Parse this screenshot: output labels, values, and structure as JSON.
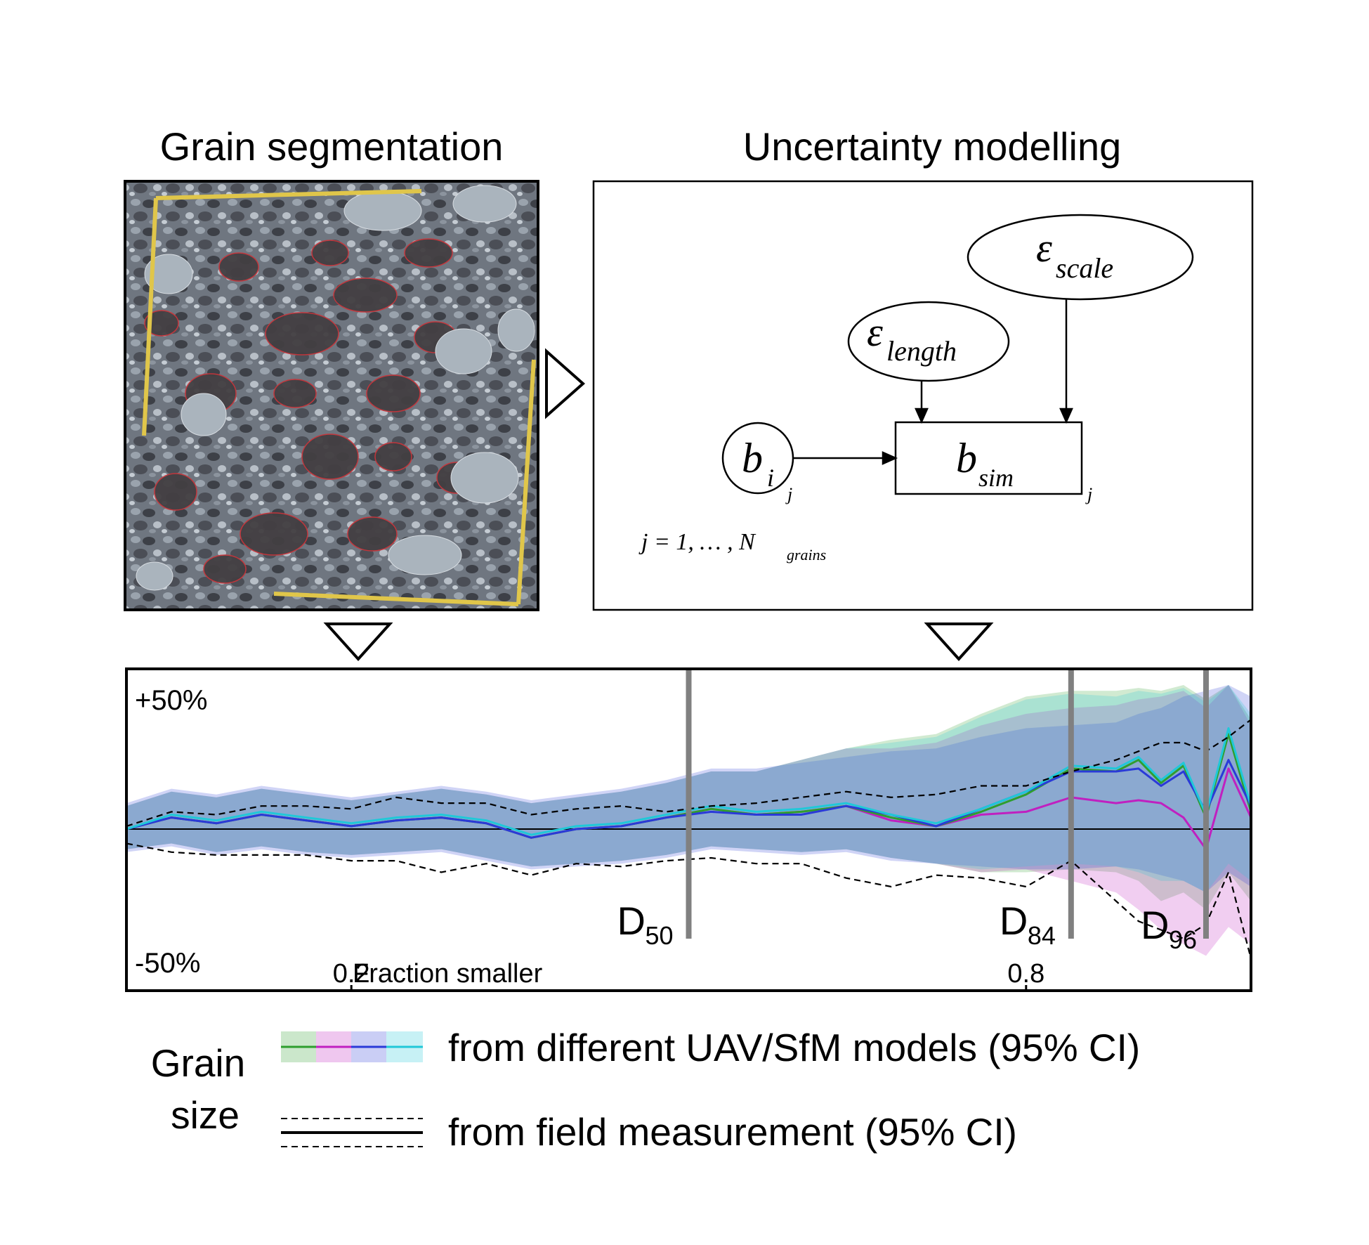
{
  "panels": {
    "left_title": "Grain segmentation",
    "right_title": "Uncertainty modelling"
  },
  "model": {
    "eps_length": {
      "symbol": "ε",
      "sub": "length"
    },
    "eps_scale": {
      "symbol": "ε",
      "sub": "scale"
    },
    "b_i": {
      "symbol": "b",
      "sub": "i",
      "plate": "j"
    },
    "b_sim": {
      "symbol": "b",
      "sub": "sim",
      "plate": "j"
    },
    "index_line": {
      "prefix": "j = 1, … , N",
      "sub": "grains"
    }
  },
  "chart": {
    "y_top_label": "+50%",
    "y_bottom_label": "-50%",
    "x_title": "Fraction smaller",
    "x_ticks": [
      "0.2",
      "0.8"
    ],
    "markers": [
      {
        "base": "D",
        "sub": "50"
      },
      {
        "base": "D",
        "sub": "84"
      },
      {
        "base": "D",
        "sub": "96"
      }
    ]
  },
  "legend": {
    "label_line1": "Grain",
    "label_line2": "size",
    "uav_text": "from different UAV/SfM models (95% CI)",
    "field_text": "from field measurement (95% CI)"
  },
  "colors": {
    "green": "#2e9e2e",
    "magenta": "#c020c0",
    "blue": "#2a3ad8",
    "cyan": "#20c8d8",
    "marker_grey": "#808080"
  },
  "chart_data": {
    "type": "line",
    "title": "",
    "xlabel": "Fraction smaller",
    "ylabel": "",
    "xlim": [
      0,
      1
    ],
    "ylim": [
      -50,
      50
    ],
    "x_ticks": [
      0.2,
      0.8
    ],
    "markers": [
      {
        "label": "D50",
        "x": 0.5
      },
      {
        "label": "D84",
        "x": 0.84
      },
      {
        "label": "D96",
        "x": 0.96
      }
    ],
    "x": [
      0.0,
      0.04,
      0.08,
      0.12,
      0.16,
      0.2,
      0.24,
      0.28,
      0.32,
      0.36,
      0.4,
      0.44,
      0.48,
      0.52,
      0.56,
      0.6,
      0.64,
      0.68,
      0.72,
      0.76,
      0.8,
      0.84,
      0.88,
      0.9,
      0.92,
      0.94,
      0.96,
      0.98,
      1.0
    ],
    "series": [
      {
        "name": "UAV model 1 (green)",
        "color": "#2e9e2e",
        "values": [
          0,
          4,
          2,
          5,
          3,
          1,
          3,
          4,
          2,
          -3,
          0,
          1,
          4,
          7,
          5,
          6,
          8,
          4,
          1,
          6,
          12,
          21,
          20,
          24,
          16,
          22,
          4,
          33,
          6
        ],
        "upper": [
          8,
          13,
          11,
          14,
          12,
          10,
          12,
          14,
          12,
          9,
          11,
          13,
          16,
          20,
          20,
          24,
          28,
          31,
          33,
          40,
          46,
          48,
          48,
          49,
          48,
          50,
          45,
          50,
          38
        ],
        "lower": [
          -7,
          -5,
          -8,
          -6,
          -8,
          -9,
          -8,
          -7,
          -10,
          -13,
          -12,
          -11,
          -9,
          -6,
          -7,
          -8,
          -7,
          -10,
          -12,
          -15,
          -15,
          -14,
          -15,
          -18,
          -25,
          -22,
          -28,
          -15,
          -25
        ]
      },
      {
        "name": "UAV model 2 (magenta)",
        "color": "#c020c0",
        "values": [
          0,
          4,
          2,
          5,
          3,
          1,
          3,
          4,
          2,
          -3,
          0,
          1,
          4,
          7,
          5,
          6,
          8,
          3,
          1,
          5,
          6,
          11,
          9,
          10,
          9,
          4,
          -7,
          21,
          4
        ],
        "upper": [
          8,
          13,
          11,
          14,
          12,
          10,
          12,
          14,
          12,
          9,
          11,
          13,
          16,
          20,
          20,
          24,
          28,
          28,
          30,
          36,
          40,
          42,
          43,
          45,
          46,
          48,
          42,
          50,
          36
        ],
        "lower": [
          -7,
          -5,
          -8,
          -6,
          -8,
          -9,
          -8,
          -7,
          -10,
          -13,
          -12,
          -11,
          -9,
          -6,
          -7,
          -8,
          -7,
          -10,
          -12,
          -15,
          -14,
          -18,
          -22,
          -28,
          -35,
          -40,
          -44,
          -34,
          -40
        ]
      },
      {
        "name": "UAV model 3 (blue)",
        "color": "#2a3ad8",
        "values": [
          0,
          4,
          2,
          5,
          3,
          1,
          3,
          4,
          2,
          -3,
          0,
          1,
          4,
          6,
          5,
          5,
          8,
          5,
          1,
          7,
          13,
          20,
          20,
          21,
          15,
          20,
          6,
          24,
          8
        ],
        "upper": [
          9,
          14,
          12,
          15,
          13,
          11,
          13,
          15,
          13,
          10,
          12,
          14,
          17,
          21,
          21,
          23,
          25,
          27,
          28,
          32,
          35,
          36,
          37,
          40,
          42,
          46,
          48,
          50,
          46
        ],
        "lower": [
          -8,
          -6,
          -9,
          -7,
          -9,
          -10,
          -9,
          -8,
          -11,
          -14,
          -13,
          -12,
          -10,
          -7,
          -8,
          -9,
          -8,
          -11,
          -12,
          -13,
          -14,
          -14,
          -13,
          -14,
          -16,
          -18,
          -22,
          -15,
          -20
        ]
      },
      {
        "name": "UAV model 4 (cyan)",
        "color": "#20c8d8",
        "values": [
          0,
          5,
          3,
          6,
          4,
          2,
          4,
          5,
          3,
          -2,
          1,
          2,
          5,
          8,
          6,
          7,
          9,
          5,
          2,
          7,
          13,
          22,
          21,
          25,
          17,
          23,
          5,
          35,
          8
        ],
        "upper": [
          8,
          13,
          11,
          14,
          12,
          10,
          12,
          14,
          12,
          9,
          11,
          13,
          16,
          20,
          20,
          24,
          28,
          30,
          32,
          39,
          45,
          47,
          46,
          48,
          47,
          49,
          44,
          50,
          40
        ],
        "lower": [
          -7,
          -5,
          -8,
          -6,
          -8,
          -9,
          -8,
          -7,
          -10,
          -13,
          -12,
          -11,
          -9,
          -6,
          -7,
          -8,
          -7,
          -10,
          -12,
          -14,
          -13,
          -12,
          -13,
          -15,
          -18,
          -18,
          -22,
          -12,
          -18
        ]
      },
      {
        "name": "Field upper 95% CI (dashed)",
        "color": "#000000",
        "values": [
          1,
          6,
          5,
          8,
          8,
          7,
          11,
          9,
          9,
          5,
          7,
          8,
          6,
          8,
          9,
          11,
          13,
          11,
          12,
          15,
          15,
          20,
          24,
          27,
          30,
          30,
          27,
          32,
          38
        ]
      },
      {
        "name": "Field lower 95% CI (dashed)",
        "color": "#000000",
        "values": [
          -5,
          -8,
          -9,
          -9,
          -9,
          -11,
          -11,
          -15,
          -12,
          -16,
          -12,
          -13,
          -11,
          -10,
          -12,
          -12,
          -17,
          -20,
          -16,
          -17,
          -20,
          -11,
          -25,
          -32,
          -35,
          -38,
          -33,
          -15,
          -45
        ]
      }
    ]
  }
}
